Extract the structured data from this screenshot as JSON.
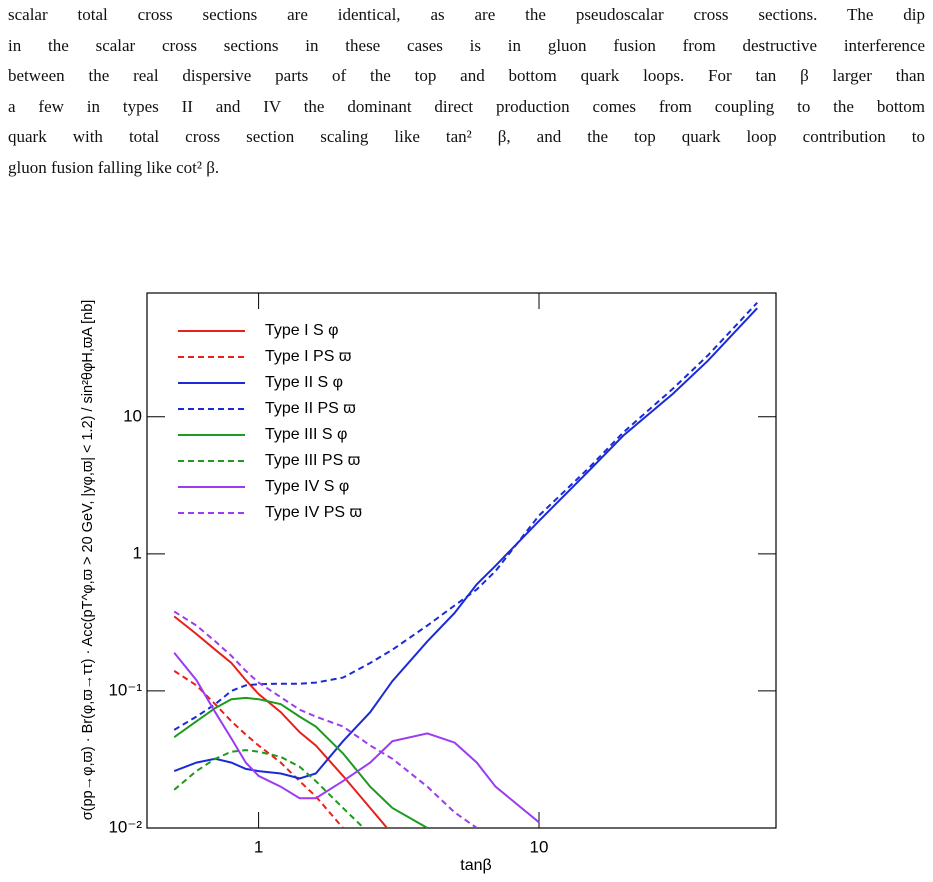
{
  "paragraph": {
    "lines": [
      "scalar total cross sections are identical, as are the pseudoscalar cross sections. The dip",
      "in the scalar cross sections in these cases is in gluon fusion from destructive interference",
      "between the real dispersive parts of the top and bottom quark loops. For tan β larger than",
      "a few in types II and IV the dominant direct production comes from coupling to the bottom",
      "quark with total cross section scaling like tan² β, and the top quark loop contribution to",
      "gluon fusion falling like cot² β."
    ]
  },
  "chart_data": {
    "type": "line",
    "x_label": "tanβ",
    "y_label": "σ(pp→φ,ϖ) · Br(φ,ϖ→ττ) · Acc(pT^φ,ϖ > 20 GeV, |yφ,ϖ| < 1.2) / sin²θφH,ϖA [nb]",
    "x": [
      0.5,
      0.6,
      0.7,
      0.8,
      0.9,
      1,
      1.2,
      1.4,
      1.6,
      2,
      2.5,
      3,
      4,
      5,
      6,
      7,
      10,
      15,
      20,
      30,
      40,
      60
    ],
    "log_x": true,
    "log_y": true,
    "xlim": [
      0.4,
      70
    ],
    "ylim": [
      0.01,
      80
    ],
    "xticks": [
      1,
      10
    ],
    "yticks": [
      {
        "value": 0.01,
        "label": "10⁻²"
      },
      {
        "value": 0.1,
        "label": "10⁻¹"
      },
      1,
      10
    ],
    "legend": "upper left",
    "series": [
      {
        "name": "Type I S  φ",
        "color": "#e8201c",
        "dash": "solid",
        "values": [
          0.35,
          0.26,
          0.2,
          0.16,
          0.12,
          0.095,
          0.07,
          0.05,
          0.04,
          0.024,
          0.014,
          0.009,
          null,
          null,
          null,
          null,
          null,
          null,
          null,
          null,
          null,
          null
        ]
      },
      {
        "name": "Type I PS  ϖ",
        "color": "#e8201c",
        "dash": "dashed",
        "values": [
          0.14,
          0.11,
          0.08,
          0.06,
          0.048,
          0.04,
          0.03,
          0.022,
          0.017,
          0.01,
          null,
          null,
          null,
          null,
          null,
          null,
          null,
          null,
          null,
          null,
          null,
          null
        ]
      },
      {
        "name": "Type II S  φ",
        "color": "#1a2bd6",
        "dash": "solid",
        "values": [
          0.026,
          0.03,
          0.032,
          0.03,
          0.027,
          0.026,
          0.025,
          0.023,
          0.025,
          0.043,
          0.07,
          0.118,
          0.23,
          0.37,
          0.6,
          0.82,
          1.74,
          4.0,
          7.3,
          14.7,
          25.6,
          62
        ]
      },
      {
        "name": "Type II PS  ϖ",
        "color": "#1a2bd6",
        "dash": "dashed",
        "values": [
          0.052,
          0.065,
          0.08,
          0.1,
          0.11,
          0.112,
          0.113,
          0.113,
          0.115,
          0.125,
          0.16,
          0.2,
          0.3,
          0.42,
          0.55,
          0.75,
          1.9,
          4.2,
          7.7,
          16,
          28,
          68
        ]
      },
      {
        "name": "Type III S  φ",
        "color": "#1e9a1e",
        "dash": "solid",
        "values": [
          0.046,
          0.06,
          0.075,
          0.087,
          0.089,
          0.087,
          0.08,
          0.065,
          0.055,
          0.035,
          0.02,
          0.014,
          0.01,
          null,
          null,
          null,
          null,
          null,
          null,
          null,
          null,
          null
        ]
      },
      {
        "name": "Type III PS  ϖ",
        "color": "#1e9a1e",
        "dash": "dashed",
        "values": [
          0.019,
          0.026,
          0.032,
          0.036,
          0.037,
          0.036,
          0.033,
          0.028,
          0.022,
          0.014,
          0.009,
          null,
          null,
          null,
          null,
          null,
          null,
          null,
          null,
          null,
          null,
          null
        ]
      },
      {
        "name": "Type IV S  φ",
        "color": "#9b3cf0",
        "dash": "solid",
        "values": [
          0.19,
          0.12,
          0.07,
          0.045,
          0.03,
          0.024,
          0.02,
          0.0165,
          0.0165,
          0.022,
          0.03,
          0.043,
          0.049,
          0.042,
          0.03,
          0.02,
          0.011,
          null,
          null,
          null,
          null,
          null
        ]
      },
      {
        "name": "Type IV PS  ϖ",
        "color": "#9b3cf0",
        "dash": "dashed",
        "values": [
          0.38,
          0.3,
          0.23,
          0.18,
          0.14,
          0.115,
          0.09,
          0.073,
          0.065,
          0.055,
          0.04,
          0.032,
          0.02,
          0.013,
          0.01,
          null,
          null,
          null,
          null,
          null,
          null,
          null
        ]
      }
    ]
  }
}
